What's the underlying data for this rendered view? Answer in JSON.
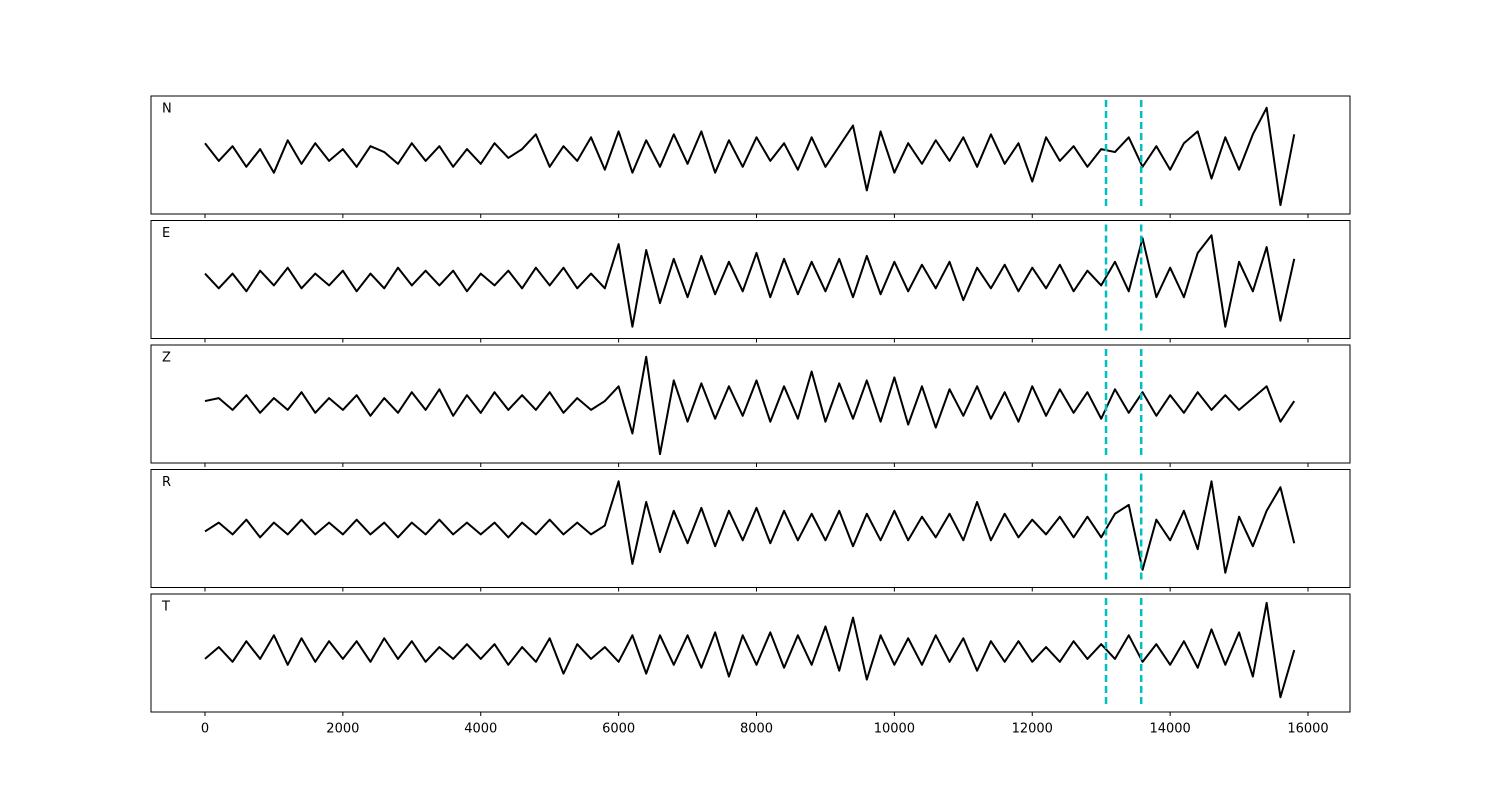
{
  "chart_data": {
    "type": "line",
    "x": [
      0,
      200,
      400,
      600,
      800,
      1000,
      1200,
      1400,
      1600,
      1800,
      2000,
      2200,
      2400,
      2600,
      2800,
      3000,
      3200,
      3400,
      3600,
      3800,
      4000,
      4200,
      4400,
      4600,
      4800,
      5000,
      5200,
      5400,
      5600,
      5800,
      6000,
      6200,
      6400,
      6600,
      6800,
      7000,
      7200,
      7400,
      7600,
      7800,
      8000,
      8200,
      8400,
      8600,
      8800,
      9000,
      9200,
      9400,
      9600,
      9800,
      10000,
      10200,
      10400,
      10600,
      10800,
      11000,
      11200,
      11400,
      11600,
      11800,
      12000,
      12200,
      12400,
      12600,
      12800,
      13000,
      13200,
      13400,
      13600,
      13800,
      14000,
      14200,
      14400,
      14600,
      14800,
      15000,
      15200,
      15400,
      15600,
      15800
    ],
    "series": [
      {
        "name": "N",
        "color": "#000000",
        "values": [
          0.2,
          -0.1,
          0.15,
          -0.2,
          0.1,
          -0.3,
          0.25,
          -0.15,
          0.2,
          -0.1,
          0.1,
          -0.2,
          0.15,
          0.05,
          -0.15,
          0.2,
          -0.1,
          0.15,
          -0.2,
          0.1,
          -0.15,
          0.2,
          -0.05,
          0.1,
          0.35,
          -0.2,
          0.15,
          -0.1,
          0.3,
          -0.25,
          0.4,
          -0.3,
          0.25,
          -0.2,
          0.35,
          -0.15,
          0.4,
          -0.3,
          0.25,
          -0.2,
          0.3,
          -0.1,
          0.2,
          -0.25,
          0.3,
          -0.2,
          0.15,
          0.5,
          -0.6,
          0.4,
          -0.3,
          0.2,
          -0.15,
          0.25,
          -0.1,
          0.3,
          -0.2,
          0.35,
          -0.15,
          0.2,
          -0.45,
          0.3,
          -0.1,
          0.15,
          -0.2,
          0.1,
          0.05,
          0.3,
          -0.2,
          0.15,
          -0.25,
          0.2,
          0.4,
          -0.4,
          0.3,
          -0.25,
          0.35,
          0.8,
          -0.85,
          0.35
        ]
      },
      {
        "name": "E",
        "color": "#000000",
        "values": [
          0.1,
          -0.15,
          0.1,
          -0.2,
          0.15,
          -0.1,
          0.2,
          -0.15,
          0.1,
          -0.1,
          0.15,
          -0.2,
          0.1,
          -0.15,
          0.2,
          -0.1,
          0.15,
          -0.1,
          0.15,
          -0.2,
          0.1,
          -0.1,
          0.15,
          -0.15,
          0.2,
          -0.1,
          0.2,
          -0.15,
          0.1,
          -0.15,
          0.6,
          -0.8,
          0.5,
          -0.4,
          0.35,
          -0.3,
          0.4,
          -0.25,
          0.3,
          -0.2,
          0.45,
          -0.3,
          0.35,
          -0.25,
          0.3,
          -0.2,
          0.35,
          -0.3,
          0.4,
          -0.25,
          0.3,
          -0.2,
          0.25,
          -0.15,
          0.3,
          -0.35,
          0.2,
          -0.15,
          0.25,
          -0.2,
          0.2,
          -0.15,
          0.25,
          -0.2,
          0.15,
          -0.1,
          0.3,
          -0.2,
          0.7,
          -0.3,
          0.2,
          -0.3,
          0.45,
          0.75,
          -0.8,
          0.3,
          -0.2,
          0.55,
          -0.7,
          0.35
        ]
      },
      {
        "name": "Z",
        "color": "#000000",
        "values": [
          0.05,
          0.1,
          -0.1,
          0.15,
          -0.15,
          0.1,
          -0.1,
          0.2,
          -0.15,
          0.1,
          -0.1,
          0.15,
          -0.2,
          0.1,
          -0.15,
          0.2,
          -0.1,
          0.25,
          -0.2,
          0.15,
          -0.15,
          0.2,
          -0.1,
          0.15,
          -0.1,
          0.2,
          -0.15,
          0.1,
          -0.1,
          0.05,
          0.3,
          -0.5,
          0.8,
          -0.85,
          0.4,
          -0.3,
          0.35,
          -0.25,
          0.3,
          -0.2,
          0.4,
          -0.3,
          0.3,
          -0.25,
          0.55,
          -0.3,
          0.35,
          -0.25,
          0.4,
          -0.3,
          0.45,
          -0.35,
          0.3,
          -0.4,
          0.25,
          -0.2,
          0.3,
          -0.25,
          0.2,
          -0.3,
          0.3,
          -0.2,
          0.25,
          -0.15,
          0.2,
          -0.25,
          0.25,
          -0.15,
          0.2,
          -0.2,
          0.15,
          -0.15,
          0.2,
          -0.1,
          0.15,
          -0.1,
          0.1,
          0.3,
          -0.3,
          0.05
        ]
      },
      {
        "name": "R",
        "color": "#000000",
        "values": [
          -0.05,
          0.1,
          -0.1,
          0.15,
          -0.15,
          0.1,
          -0.1,
          0.15,
          -0.1,
          0.1,
          -0.1,
          0.15,
          -0.1,
          0.1,
          -0.15,
          0.1,
          -0.1,
          0.15,
          -0.1,
          0.1,
          -0.1,
          0.1,
          -0.15,
          0.1,
          -0.1,
          0.15,
          -0.1,
          0.1,
          -0.1,
          0.05,
          0.8,
          -0.6,
          0.45,
          -0.4,
          0.3,
          -0.25,
          0.35,
          -0.3,
          0.3,
          -0.2,
          0.35,
          -0.25,
          0.3,
          -0.2,
          0.25,
          -0.2,
          0.3,
          -0.3,
          0.25,
          -0.2,
          0.3,
          -0.2,
          0.2,
          -0.15,
          0.25,
          -0.2,
          0.45,
          -0.2,
          0.25,
          -0.15,
          0.15,
          -0.1,
          0.2,
          -0.15,
          0.2,
          -0.15,
          0.25,
          0.4,
          -0.7,
          0.15,
          -0.2,
          0.3,
          -0.35,
          0.8,
          -0.75,
          0.2,
          -0.3,
          0.3,
          0.7,
          -0.25
        ]
      },
      {
        "name": "T",
        "color": "#000000",
        "values": [
          -0.1,
          0.1,
          -0.15,
          0.2,
          -0.1,
          0.3,
          -0.2,
          0.25,
          -0.15,
          0.2,
          -0.1,
          0.2,
          -0.15,
          0.25,
          -0.1,
          0.2,
          -0.15,
          0.1,
          -0.1,
          0.15,
          -0.1,
          0.15,
          -0.2,
          0.1,
          -0.15,
          0.25,
          -0.35,
          0.15,
          -0.1,
          0.1,
          -0.15,
          0.3,
          -0.35,
          0.3,
          -0.2,
          0.3,
          -0.25,
          0.35,
          -0.4,
          0.3,
          -0.2,
          0.35,
          -0.25,
          0.3,
          -0.2,
          0.45,
          -0.3,
          0.6,
          -0.45,
          0.3,
          -0.2,
          0.25,
          -0.2,
          0.3,
          -0.15,
          0.25,
          -0.3,
          0.2,
          -0.15,
          0.2,
          -0.15,
          0.1,
          -0.15,
          0.2,
          -0.1,
          0.15,
          -0.1,
          0.3,
          -0.15,
          0.15,
          -0.2,
          0.2,
          -0.25,
          0.4,
          -0.2,
          0.35,
          -0.4,
          0.85,
          -0.75,
          0.05
        ]
      }
    ],
    "xlim": [
      -783,
      16609
    ],
    "xticks": [
      0,
      2000,
      4000,
      6000,
      8000,
      10000,
      12000,
      14000,
      16000
    ],
    "ylim": [
      -1,
      1
    ],
    "markers": {
      "x": [
        13070,
        13580
      ],
      "color": "#00bfbf"
    }
  }
}
